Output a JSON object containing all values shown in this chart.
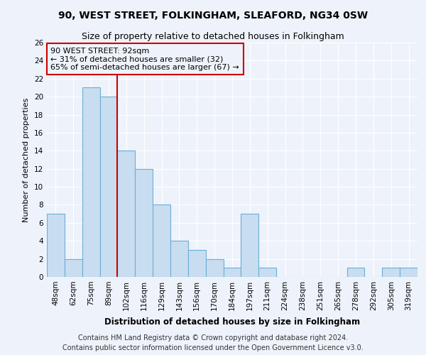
{
  "title": "90, WEST STREET, FOLKINGHAM, SLEAFORD, NG34 0SW",
  "subtitle": "Size of property relative to detached houses in Folkingham",
  "xlabel": "Distribution of detached houses by size in Folkingham",
  "ylabel": "Number of detached properties",
  "categories": [
    "48sqm",
    "62sqm",
    "75sqm",
    "89sqm",
    "102sqm",
    "116sqm",
    "129sqm",
    "143sqm",
    "156sqm",
    "170sqm",
    "184sqm",
    "197sqm",
    "211sqm",
    "224sqm",
    "238sqm",
    "251sqm",
    "265sqm",
    "278sqm",
    "292sqm",
    "305sqm",
    "319sqm"
  ],
  "values": [
    7,
    2,
    21,
    20,
    14,
    12,
    8,
    4,
    3,
    2,
    1,
    7,
    1,
    0,
    0,
    0,
    0,
    1,
    0,
    1,
    1
  ],
  "bar_color": "#c9ddf0",
  "bar_edge_color": "#6aaed6",
  "vline_x": 3.5,
  "vline_color": "#cc0000",
  "annotation_text": "90 WEST STREET: 92sqm\n← 31% of detached houses are smaller (32)\n65% of semi-detached houses are larger (67) →",
  "annotation_box_edge_color": "#cc0000",
  "ylim": [
    0,
    26
  ],
  "yticks": [
    0,
    2,
    4,
    6,
    8,
    10,
    12,
    14,
    16,
    18,
    20,
    22,
    24,
    26
  ],
  "footer": "Contains HM Land Registry data © Crown copyright and database right 2024.\nContains public sector information licensed under the Open Government Licence v3.0.",
  "title_fontsize": 10,
  "subtitle_fontsize": 9,
  "xlabel_fontsize": 8.5,
  "ylabel_fontsize": 8,
  "tick_fontsize": 7.5,
  "annotation_fontsize": 8,
  "footer_fontsize": 7,
  "background_color": "#eef3fb",
  "grid_color": "#ffffff"
}
